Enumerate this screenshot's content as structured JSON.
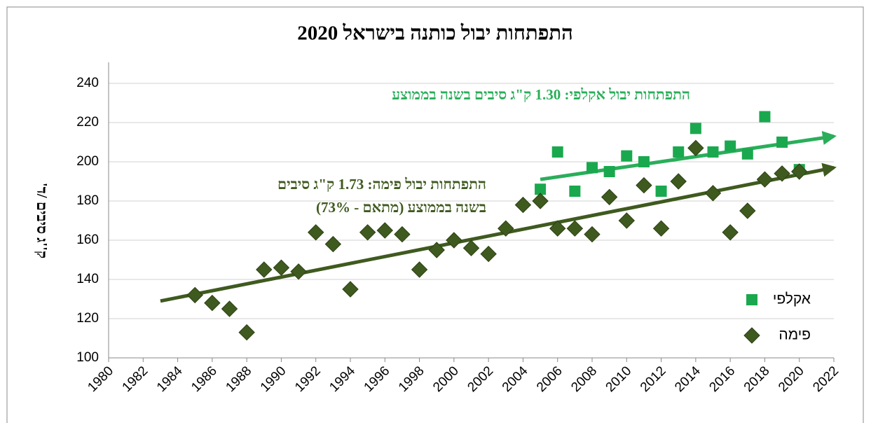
{
  "chart_data": {
    "type": "scatter",
    "title": "התפתחות יבול כותנה בישראל  2020",
    "y_label": "ק''ג סיבים /ד'",
    "xlim": [
      1980,
      2022
    ],
    "xticks": [
      1980,
      1982,
      1984,
      1986,
      1988,
      1990,
      1992,
      1994,
      1996,
      1998,
      2000,
      2002,
      2004,
      2006,
      2008,
      2010,
      2012,
      2014,
      2016,
      2018,
      2020,
      2022
    ],
    "ylim": [
      100,
      240
    ],
    "yticks": [
      100,
      120,
      140,
      160,
      180,
      200,
      220,
      240
    ],
    "grid": true,
    "legend": "bottom-right",
    "series": [
      {
        "name": "אקלפי",
        "color": "#1aa84e",
        "marker": "square",
        "x": [
          2005,
          2006,
          2007,
          2008,
          2009,
          2010,
          2011,
          2012,
          2013,
          2014,
          2015,
          2016,
          2017,
          2018,
          2019,
          2020
        ],
        "values": [
          186,
          205,
          185,
          197,
          195,
          203,
          200,
          185,
          205,
          217,
          205,
          208,
          204,
          223,
          210,
          196
        ]
      },
      {
        "name": "פימה",
        "color": "#3f5a1f",
        "marker": "diamond",
        "x": [
          1985,
          1986,
          1987,
          1988,
          1989,
          1990,
          1991,
          1992,
          1993,
          1994,
          1995,
          1996,
          1997,
          1998,
          1999,
          2000,
          2001,
          2002,
          2003,
          2004,
          2005,
          2006,
          2007,
          2008,
          2009,
          2010,
          2011,
          2012,
          2013,
          2014,
          2015,
          2016,
          2017,
          2018,
          2019,
          2020
        ],
        "values": [
          132,
          128,
          125,
          113,
          145,
          146,
          144,
          164,
          158,
          135,
          164,
          165,
          163,
          145,
          155,
          160,
          156,
          153,
          166,
          178,
          180,
          166,
          166,
          163,
          182,
          170,
          188,
          166,
          190,
          207,
          184,
          164,
          175,
          191,
          194,
          195
        ]
      }
    ],
    "trendlines": [
      {
        "color": "#2aae5a",
        "x": [
          2005,
          2022
        ],
        "values": [
          191,
          213
        ],
        "label": [
          "התפתחות יבול אקלפי: 1.30 ק\"ג סיבים בשנה בממוצע"
        ]
      },
      {
        "color": "#3f5a1f",
        "x": [
          1983,
          2022
        ],
        "values": [
          129,
          197
        ],
        "label": [
          "התפתחות יבול פימה: 1.73 ק\"ג סיבים",
          "בשנה בממוצע (מתאם - 73%)"
        ]
      }
    ]
  }
}
